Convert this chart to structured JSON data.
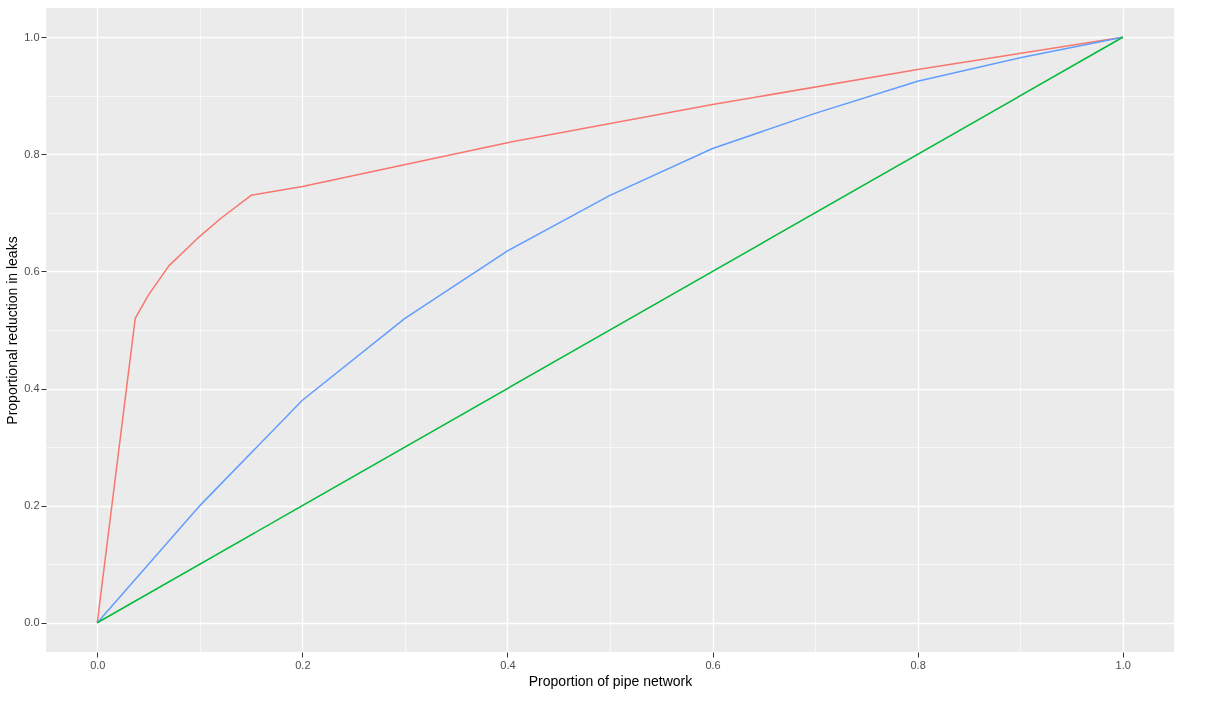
{
  "chart_data": {
    "type": "line",
    "xlabel": "Proportion of pipe network",
    "ylabel": "Proportional reduction in leaks",
    "xlim": [
      -0.05,
      1.05
    ],
    "ylim": [
      -0.05,
      1.05
    ],
    "xticks": [
      {
        "value": 0,
        "label": "0.0"
      },
      {
        "value": 0.1,
        "label": null
      },
      0.2,
      {
        "value": 0.3,
        "label": null
      },
      0.4,
      {
        "value": 0.5,
        "label": null
      },
      0.6,
      {
        "value": 0.7,
        "label": null
      },
      0.8,
      {
        "value": 0.9,
        "label": null
      },
      {
        "value": 1,
        "label": "1.0"
      }
    ],
    "yticks": [
      {
        "value": 0,
        "label": "0.0"
      },
      {
        "value": 0.1,
        "label": null
      },
      0.2,
      {
        "value": 0.3,
        "label": null
      },
      0.4,
      {
        "value": 0.5,
        "label": null
      },
      0.6,
      {
        "value": 0.7,
        "label": null
      },
      0.8,
      {
        "value": 0.9,
        "label": null
      },
      {
        "value": 1,
        "label": "1.0"
      }
    ],
    "grid": true,
    "legend": false,
    "line_style": "solid",
    "series": [
      {
        "color": "#f8766d",
        "x": [
          0,
          0.037,
          0.05,
          0.07,
          0.1,
          0.12,
          0.15,
          0.2,
          0.4,
          0.6,
          0.8,
          1
        ],
        "values": [
          0,
          0.52,
          0.56,
          0.61,
          0.66,
          0.69,
          0.73,
          0.745,
          0.82,
          0.885,
          0.945,
          1
        ]
      },
      {
        "color": "#619cff",
        "x": [
          0,
          0.1,
          0.2,
          0.3,
          0.4,
          0.5,
          0.6,
          0.7,
          0.8,
          0.9,
          1
        ],
        "values": [
          0,
          0.2,
          0.38,
          0.52,
          0.635,
          0.73,
          0.81,
          0.87,
          0.925,
          0.965,
          1
        ]
      },
      {
        "color": "#00ba38",
        "x": [
          0,
          1
        ],
        "values": [
          0,
          1
        ]
      }
    ]
  }
}
